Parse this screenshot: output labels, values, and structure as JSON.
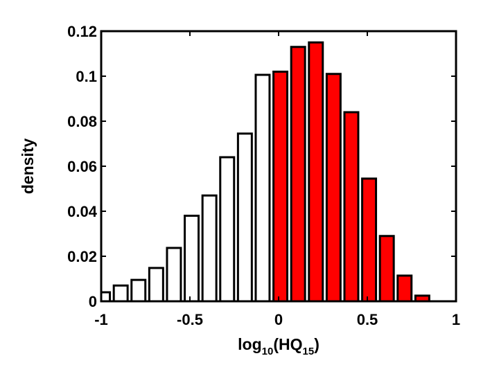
{
  "chart_data": {
    "type": "bar",
    "x": [
      -0.99,
      -0.89,
      -0.79,
      -0.69,
      -0.59,
      -0.49,
      -0.39,
      -0.29,
      -0.19,
      -0.09,
      0.01,
      0.11,
      0.21,
      0.31,
      0.41,
      0.51,
      0.61,
      0.71,
      0.81
    ],
    "values": [
      0.004,
      0.007,
      0.0095,
      0.0148,
      0.0237,
      0.038,
      0.047,
      0.064,
      0.0745,
      0.1006,
      0.102,
      0.113,
      0.115,
      0.101,
      0.084,
      0.0545,
      0.029,
      0.0114,
      0.0025
    ],
    "colors": [
      "#ffffff",
      "#ffffff",
      "#ffffff",
      "#ffffff",
      "#ffffff",
      "#ffffff",
      "#ffffff",
      "#ffffff",
      "#ffffff",
      "#ffffff",
      "#ff0000",
      "#ff0000",
      "#ff0000",
      "#ff0000",
      "#ff0000",
      "#ff0000",
      "#ff0000",
      "#ff0000",
      "#ff0000"
    ],
    "xlim": [
      -1,
      1
    ],
    "ylim": [
      0,
      0.12
    ],
    "xticks": [
      -1,
      -0.5,
      0,
      0.5,
      1
    ],
    "yticks": [
      0,
      0.02,
      0.04,
      0.06,
      0.08,
      0.1,
      0.12
    ],
    "xlabel": [
      "log",
      "10",
      "(HQ",
      "15",
      ")"
    ],
    "ylabel": "density"
  }
}
